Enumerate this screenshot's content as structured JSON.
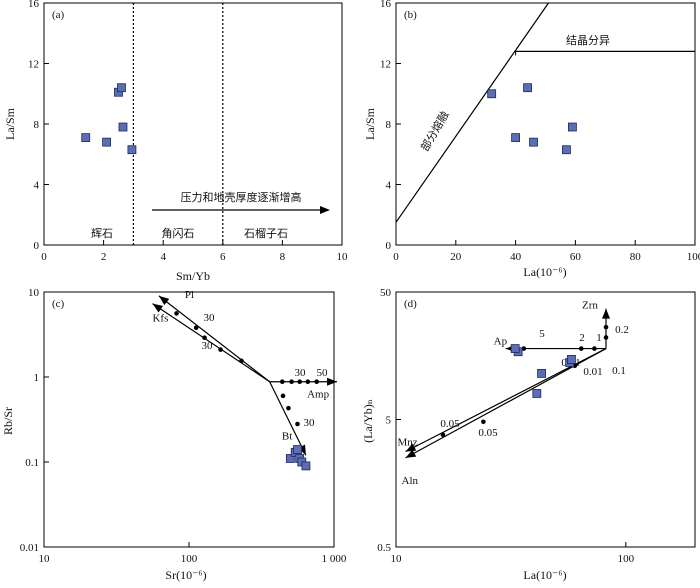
{
  "colors": {
    "marker_fill": "#5b6db3",
    "marker_stroke": "#1f2a5c",
    "line": "#000000",
    "background": "#ffffff"
  },
  "chart_data": [
    {
      "id": "a",
      "type": "scatter",
      "panel_label": "(a)",
      "xlabel": "Sm/Yb",
      "ylabel": "La/Sm",
      "xlim": [
        0,
        10
      ],
      "ylim": [
        0,
        16
      ],
      "xticks": [
        "0",
        "2",
        "4",
        "6",
        "8",
        "10"
      ],
      "yticks": [
        "0",
        "4",
        "8",
        "12",
        "16"
      ],
      "points": [
        {
          "x": 1.4,
          "y": 7.1
        },
        {
          "x": 2.1,
          "y": 6.8
        },
        {
          "x": 2.5,
          "y": 10.1
        },
        {
          "x": 2.6,
          "y": 10.4
        },
        {
          "x": 2.65,
          "y": 7.8
        },
        {
          "x": 2.95,
          "y": 6.3
        }
      ],
      "divider_x": [
        3,
        6
      ],
      "regions": [
        "辉石",
        "角闪石",
        "石榴子石"
      ],
      "arrow_text": "压力和地壳厚度逐渐增高"
    },
    {
      "id": "b",
      "type": "scatter",
      "panel_label": "(b)",
      "xlabel": "La(10⁻⁶)",
      "ylabel": "La/Sm",
      "xlim": [
        0,
        100
      ],
      "ylim": [
        0,
        16
      ],
      "xticks": [
        "0",
        "20",
        "40",
        "60",
        "80",
        "100"
      ],
      "yticks": [
        "0",
        "4",
        "8",
        "12",
        "16"
      ],
      "points": [
        {
          "x": 32,
          "y": 10.0
        },
        {
          "x": 44,
          "y": 10.4
        },
        {
          "x": 40,
          "y": 7.1
        },
        {
          "x": 46,
          "y": 6.8
        },
        {
          "x": 59,
          "y": 7.8
        },
        {
          "x": 57,
          "y": 6.3
        }
      ],
      "partial_melting_line": [
        [
          0,
          1.5
        ],
        [
          51,
          16
        ]
      ],
      "crystallization_line": [
        [
          40,
          12.8
        ],
        [
          100,
          12.8
        ]
      ],
      "label_melting": "部分熔融",
      "label_crystallization": "结晶分异"
    },
    {
      "id": "c",
      "type": "scatter",
      "panel_label": "(c)",
      "xlabel": "Sr(10⁻⁶)",
      "ylabel": "Rb/Sr",
      "x_scale": "log",
      "y_scale": "log",
      "xlim": [
        10,
        1000
      ],
      "ylim": [
        0.01,
        10
      ],
      "xticks": [
        "10",
        "100",
        "1 000"
      ],
      "yticks": [
        "0.01",
        "0.1",
        "1",
        "10"
      ],
      "points": [
        {
          "x": 500,
          "y": 0.11
        },
        {
          "x": 540,
          "y": 0.13
        },
        {
          "x": 560,
          "y": 0.14
        },
        {
          "x": 580,
          "y": 0.11
        },
        {
          "x": 600,
          "y": 0.1
        },
        {
          "x": 640,
          "y": 0.09
        }
      ],
      "origin": [
        360,
        0.88
      ],
      "vectors": [
        {
          "name": "Pl",
          "end": [
            62,
            9.0
          ],
          "ticks": [
            [
              112,
              3.8
            ],
            [
              82,
              5.6
            ]
          ],
          "tick_labels": [
            "30",
            "30"
          ]
        },
        {
          "name": "Kfs",
          "end": [
            56,
            7.3
          ],
          "ticks": [
            [
              230,
              1.55
            ],
            [
              165,
              2.1
            ],
            [
              128,
              2.9
            ]
          ],
          "tick_labels": []
        },
        {
          "name": "Amp",
          "end": [
            1050,
            0.88
          ],
          "ticks": [
            [
              440,
              0.88
            ],
            [
              510,
              0.88
            ],
            [
              580,
              0.88
            ],
            [
              660,
              0.88
            ],
            [
              760,
              0.88
            ]
          ],
          "tick_labels": [
            "30",
            "50"
          ]
        },
        {
          "name": "Bt",
          "end": [
            640,
            0.12
          ],
          "ticks": [
            [
              445,
              0.6
            ],
            [
              485,
              0.43
            ],
            [
              560,
              0.28
            ]
          ],
          "tick_labels": [
            "30"
          ]
        }
      ]
    },
    {
      "id": "d",
      "type": "scatter",
      "panel_label": "(d)",
      "xlabel": "La(10⁻⁶)",
      "ylabel": "(La/Yb)ₙ",
      "x_scale": "log",
      "y_scale": "log",
      "xlim": [
        10,
        200
      ],
      "ylim": [
        0.5,
        50
      ],
      "xticks": [
        "10",
        "100"
      ],
      "yticks": [
        "0.5",
        "5",
        "50"
      ],
      "points": [
        {
          "x": 34,
          "y": 17.0
        },
        {
          "x": 43,
          "y": 11.5
        },
        {
          "x": 41,
          "y": 8.0
        },
        {
          "x": 57,
          "y": 14.0
        },
        {
          "x": 58,
          "y": 14.8
        },
        {
          "x": 33,
          "y": 18.0
        }
      ],
      "origin": [
        82,
        18.0
      ],
      "vectors": [
        {
          "name": "Zrn",
          "end": [
            82,
            37.0
          ],
          "ticks": [
            [
              82,
              22.0
            ],
            [
              82,
              26.5
            ]
          ],
          "tick_labels": [
            "0.1",
            "0.2"
          ]
        },
        {
          "name": "Ap",
          "end": [
            30,
            18.0
          ],
          "ticks": [
            [
              73,
              18.0
            ],
            [
              64,
              18.0
            ],
            [
              36,
              18.0
            ]
          ],
          "tick_labels": [
            "1",
            "2",
            "5"
          ]
        },
        {
          "name": "Mnz",
          "end": [
            11,
            2.8
          ],
          "ticks": [
            [
              58,
              14.0
            ],
            [
              16,
              3.8
            ]
          ],
          "tick_labels": [
            "0.01",
            "0.05"
          ]
        },
        {
          "name": "Aln",
          "end": [
            11,
            2.5
          ],
          "ticks": [
            [
              60,
              13.2
            ],
            [
              24,
              4.8
            ]
          ],
          "tick_labels": [
            "0.01",
            "0.05"
          ]
        }
      ]
    }
  ]
}
